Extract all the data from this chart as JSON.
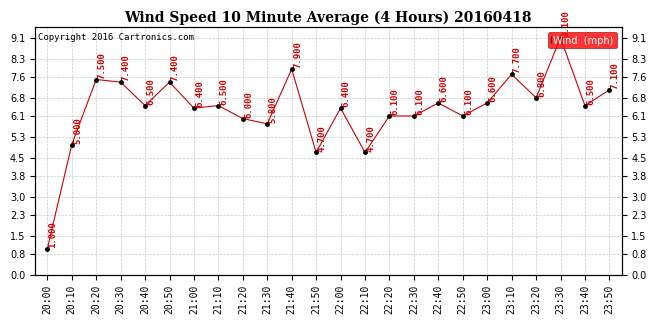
{
  "title": "Wind Speed 10 Minute Average (4 Hours) 20160418",
  "copyright": "Copyright 2016 Cartronics.com",
  "legend_label": "Wind  (mph)",
  "x_labels": [
    "20:00",
    "20:10",
    "20:20",
    "20:30",
    "20:40",
    "20:50",
    "21:00",
    "21:10",
    "21:20",
    "21:30",
    "21:40",
    "21:50",
    "22:00",
    "22:10",
    "22:20",
    "22:30",
    "22:40",
    "22:50",
    "23:00",
    "23:10",
    "23:20",
    "23:30",
    "23:40",
    "23:50"
  ],
  "y_values": [
    1.0,
    5.0,
    7.5,
    7.4,
    6.5,
    7.4,
    6.4,
    6.5,
    6.0,
    5.8,
    7.9,
    4.7,
    6.4,
    4.7,
    6.1,
    6.1,
    6.6,
    6.1,
    6.6,
    7.7,
    6.8,
    9.1,
    6.5,
    7.1
  ],
  "annotations": [
    "1.000",
    "5.000",
    "7.500",
    "7.400",
    "6.500",
    "7.400",
    "6.400",
    "6.500",
    "6.000",
    "5.800",
    "7.900",
    "4.700",
    "6.400",
    "4.700",
    "6.100",
    "6.100",
    "6.600",
    "6.100",
    "6.600",
    "7.700",
    "6.800",
    "9.100",
    "6.500",
    "7.100"
  ],
  "line_color": "#cc0000",
  "marker_color": "#000000",
  "annotation_color": "#cc0000",
  "background_color": "#ffffff",
  "grid_color": "#bbbbbb",
  "ylim": [
    0.0,
    9.5
  ],
  "yticks": [
    0.0,
    0.8,
    1.5,
    2.3,
    3.0,
    3.8,
    4.5,
    5.3,
    6.1,
    6.8,
    7.6,
    8.3,
    9.1
  ],
  "title_fontsize": 10,
  "annotation_fontsize": 6.5,
  "copyright_fontsize": 6.5,
  "tick_fontsize": 7
}
